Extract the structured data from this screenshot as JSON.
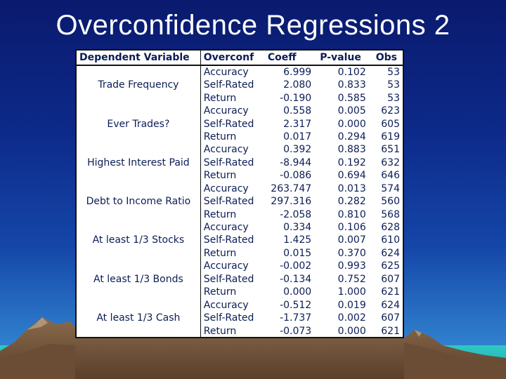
{
  "slide": {
    "title": "Overconfidence Regressions 2"
  },
  "table": {
    "headers": [
      "Dependent Variable",
      "Overconf",
      "Coeff",
      "P-value",
      "Obs"
    ],
    "groups": [
      {
        "dependent_variable": "Trade Frequency",
        "rows": [
          {
            "overconf": "Accuracy",
            "coeff": "6.999",
            "pvalue": "0.102",
            "obs": "53"
          },
          {
            "overconf": "Self-Rated",
            "coeff": "2.080",
            "pvalue": "0.833",
            "obs": "53"
          },
          {
            "overconf": "Return",
            "coeff": "-0.190",
            "pvalue": "0.585",
            "obs": "53"
          }
        ]
      },
      {
        "dependent_variable": "Ever Trades?",
        "rows": [
          {
            "overconf": "Accuracy",
            "coeff": "0.558",
            "pvalue": "0.005",
            "obs": "623"
          },
          {
            "overconf": "Self-Rated",
            "coeff": "2.317",
            "pvalue": "0.000",
            "obs": "605"
          },
          {
            "overconf": "Return",
            "coeff": "0.017",
            "pvalue": "0.294",
            "obs": "619"
          }
        ]
      },
      {
        "dependent_variable": "Highest Interest Paid",
        "rows": [
          {
            "overconf": "Accuracy",
            "coeff": "0.392",
            "pvalue": "0.883",
            "obs": "651"
          },
          {
            "overconf": "Self-Rated",
            "coeff": "-8.944",
            "pvalue": "0.192",
            "obs": "632"
          },
          {
            "overconf": "Return",
            "coeff": "-0.086",
            "pvalue": "0.694",
            "obs": "646"
          }
        ]
      },
      {
        "dependent_variable": "Debt to Income Ratio",
        "rows": [
          {
            "overconf": "Accuracy",
            "coeff": "263.747",
            "pvalue": "0.013",
            "obs": "574"
          },
          {
            "overconf": "Self-Rated",
            "coeff": "297.316",
            "pvalue": "0.282",
            "obs": "560"
          },
          {
            "overconf": "Return",
            "coeff": "-2.058",
            "pvalue": "0.810",
            "obs": "568"
          }
        ]
      },
      {
        "dependent_variable": "At least 1/3 Stocks",
        "rows": [
          {
            "overconf": "Accuracy",
            "coeff": "0.334",
            "pvalue": "0.106",
            "obs": "628"
          },
          {
            "overconf": "Self-Rated",
            "coeff": "1.425",
            "pvalue": "0.007",
            "obs": "610"
          },
          {
            "overconf": "Return",
            "coeff": "0.015",
            "pvalue": "0.370",
            "obs": "624"
          }
        ]
      },
      {
        "dependent_variable": "At least 1/3 Bonds",
        "rows": [
          {
            "overconf": "Accuracy",
            "coeff": "-0.002",
            "pvalue": "0.993",
            "obs": "625"
          },
          {
            "overconf": "Self-Rated",
            "coeff": "-0.134",
            "pvalue": "0.752",
            "obs": "607"
          },
          {
            "overconf": "Return",
            "coeff": "0.000",
            "pvalue": "1.000",
            "obs": "621"
          }
        ]
      },
      {
        "dependent_variable": "At least 1/3 Cash",
        "rows": [
          {
            "overconf": "Accuracy",
            "coeff": "-0.512",
            "pvalue": "0.019",
            "obs": "624"
          },
          {
            "overconf": "Self-Rated",
            "coeff": "-1.737",
            "pvalue": "0.002",
            "obs": "607"
          },
          {
            "overconf": "Return",
            "coeff": "-0.073",
            "pvalue": "0.000",
            "obs": "621"
          }
        ]
      }
    ]
  },
  "colors": {
    "background_top": "#0a1a6e",
    "background_bottom": "#3a90d8",
    "table_text": "#0b1d55",
    "mountain": "#7a5a3e",
    "ground_teal": "#2ec8c4"
  }
}
